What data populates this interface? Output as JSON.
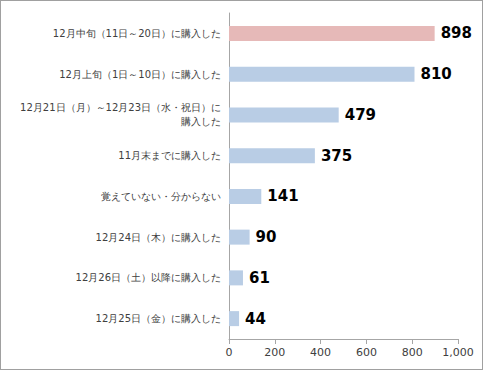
{
  "chart_data": {
    "type": "bar",
    "orientation": "horizontal",
    "categories": [
      "12月中旬（11日～20日）に購入した",
      "12月上旬（1日～10日）に購入した",
      "12月21日（月）～12月23日（水・祝日）に\n購入した",
      "11月末までに購入した",
      "覚えていない・分からない",
      "12月24日（木）に購入した",
      "12月26日（土）以降に購入した",
      "12月25日（金）に購入した"
    ],
    "values": [
      898,
      810,
      479,
      375,
      141,
      90,
      61,
      44
    ],
    "colors": [
      "#e6b9b8",
      "#b9cde5",
      "#b9cde5",
      "#b9cde5",
      "#b9cde5",
      "#b9cde5",
      "#b9cde5",
      "#b9cde5"
    ],
    "xlim": [
      0,
      1000
    ],
    "xticks": [
      0,
      200,
      400,
      600,
      800,
      {
        "value": 1000,
        "label": "1,000"
      }
    ],
    "grid": false,
    "data_labels": true
  }
}
